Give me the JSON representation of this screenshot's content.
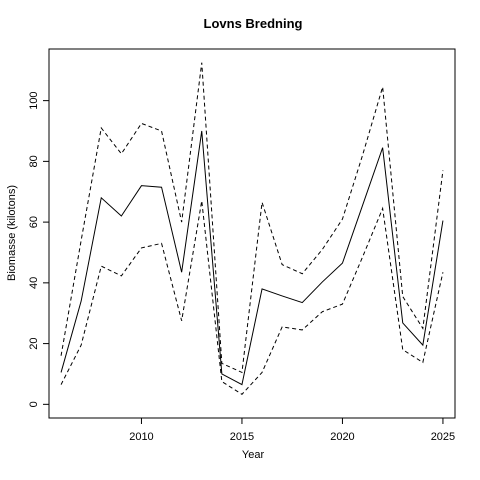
{
  "chart_data": {
    "type": "line",
    "title": "Lovns Bredning",
    "xlabel": "Year",
    "ylabel": "Biomasse (kilotons)",
    "xlim": [
      2005.4,
      2025.6
    ],
    "ylim": [
      -4.5,
      117
    ],
    "xticks": [
      2010,
      2015,
      2020,
      2025
    ],
    "yticks": [
      0,
      20,
      40,
      60,
      80,
      100
    ],
    "grid": false,
    "x": [
      2006,
      2007,
      2008,
      2009,
      2010,
      2011,
      2012,
      2013,
      2014,
      2015,
      2016,
      2017,
      2018,
      2019,
      2020,
      2021,
      2022,
      2023,
      2024,
      2025
    ],
    "series": [
      {
        "style": "solid",
        "values": [
          10.5,
          34,
          68,
          62,
          72,
          71.5,
          43.5,
          90,
          10,
          6.5,
          38,
          35.7,
          33.5,
          40.3,
          46.5,
          65.5,
          84.5,
          26.8,
          19.5,
          60.5
        ]
      },
      {
        "style": "dashed",
        "values": [
          16,
          54,
          91,
          82.5,
          92.5,
          90,
          60,
          112.5,
          13.5,
          10.5,
          66.5,
          46,
          43,
          51,
          61,
          82,
          104.5,
          35.5,
          25,
          77
        ]
      },
      {
        "style": "dashed",
        "values": [
          6.5,
          19.5,
          45.5,
          42.3,
          51.5,
          53,
          27.5,
          67,
          7.5,
          3.3,
          10.5,
          25.5,
          24.5,
          30.5,
          33,
          48.5,
          64.5,
          18,
          13.8,
          43.5
        ]
      }
    ]
  }
}
